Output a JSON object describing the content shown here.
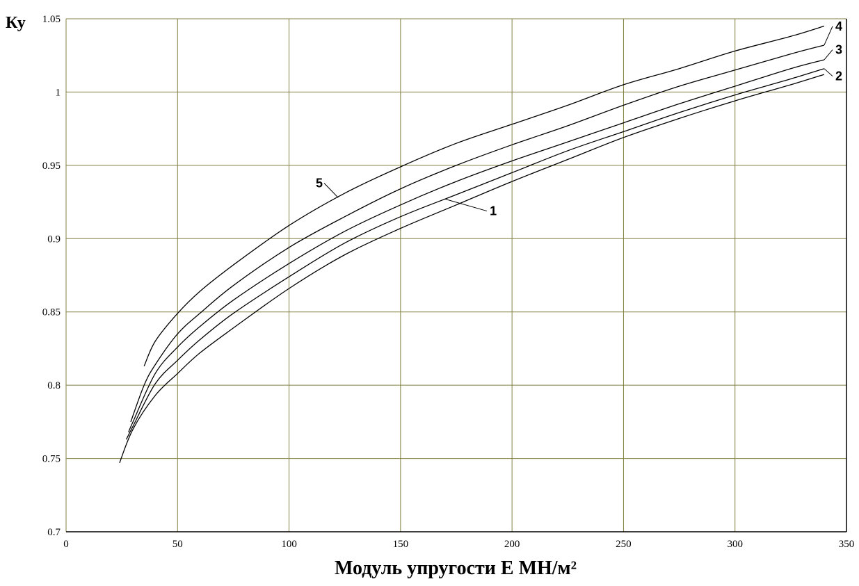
{
  "chart_data": {
    "type": "line",
    "xlabel": "Модуль упругости Е МН/м²",
    "ylabel": "Ку",
    "xlim": [
      0,
      350
    ],
    "ylim": [
      0.7,
      1.05
    ],
    "x_ticks": [
      0,
      50,
      100,
      150,
      200,
      250,
      300,
      350
    ],
    "y_ticks": [
      0.7,
      0.75,
      0.8,
      0.85,
      0.9,
      0.95,
      1,
      1.05
    ],
    "x_tick_labels": [
      "0",
      "50",
      "100",
      "150",
      "200",
      "250",
      "300",
      "350"
    ],
    "y_tick_labels": [
      "0.7",
      "0.75",
      "0.8",
      "0.85",
      "0.9",
      "0.95",
      "1",
      "1.05"
    ],
    "grid": true,
    "grid_color": "#808040",
    "line_color": "#000000",
    "series": [
      {
        "name": "1",
        "x": [
          24,
          30,
          40,
          50,
          60,
          75,
          100,
          125,
          150,
          175,
          200,
          225,
          250,
          275,
          300,
          325,
          340
        ],
        "y": [
          0.747,
          0.77,
          0.793,
          0.808,
          0.822,
          0.839,
          0.866,
          0.889,
          0.907,
          0.923,
          0.939,
          0.954,
          0.969,
          0.982,
          0.994,
          1.005,
          1.012
        ]
      },
      {
        "name": "2",
        "x": [
          27,
          30,
          40,
          50,
          60,
          75,
          100,
          125,
          150,
          175,
          200,
          225,
          250,
          275,
          300,
          325,
          340
        ],
        "y": [
          0.763,
          0.772,
          0.801,
          0.817,
          0.831,
          0.849,
          0.874,
          0.897,
          0.915,
          0.93,
          0.945,
          0.96,
          0.973,
          0.986,
          0.998,
          1.009,
          1.016
        ]
      },
      {
        "name": "3",
        "x": [
          28,
          30,
          40,
          50,
          60,
          75,
          100,
          125,
          150,
          175,
          200,
          225,
          250,
          275,
          300,
          325,
          340
        ],
        "y": [
          0.768,
          0.775,
          0.808,
          0.826,
          0.84,
          0.858,
          0.883,
          0.905,
          0.923,
          0.939,
          0.953,
          0.966,
          0.979,
          0.992,
          1.004,
          1.016,
          1.022
        ]
      },
      {
        "name": "4",
        "x": [
          29,
          35,
          40,
          50,
          60,
          75,
          100,
          125,
          150,
          175,
          200,
          225,
          250,
          275,
          300,
          325,
          340
        ],
        "y": [
          0.775,
          0.8,
          0.814,
          0.835,
          0.849,
          0.868,
          0.894,
          0.915,
          0.934,
          0.95,
          0.964,
          0.977,
          0.991,
          1.004,
          1.015,
          1.026,
          1.032
        ]
      },
      {
        "name": "5",
        "x": [
          35,
          40,
          50,
          60,
          75,
          100,
          125,
          150,
          175,
          200,
          225,
          250,
          275,
          300,
          325,
          340
        ],
        "y": [
          0.813,
          0.83,
          0.849,
          0.864,
          0.882,
          0.909,
          0.931,
          0.949,
          0.965,
          0.978,
          0.991,
          1.005,
          1.016,
          1.028,
          1.038,
          1.045
        ]
      }
    ],
    "annotations": [
      {
        "text": "1",
        "series": "1",
        "point_x": 170,
        "point_y": 0.927,
        "label_x": 190,
        "label_y": 0.916
      },
      {
        "text": "2",
        "series": "2",
        "point_x": 340,
        "point_y": 1.016,
        "label_x": 345,
        "label_y": 1.008
      },
      {
        "text": "3",
        "series": "3",
        "point_x": 340,
        "point_y": 1.022,
        "label_x": 345,
        "label_y": 1.026
      },
      {
        "text": "4",
        "series": "4",
        "point_x": 340,
        "point_y": 1.032,
        "label_x": 345,
        "label_y": 1.042
      },
      {
        "text": "5",
        "series": "5",
        "point_x": 122,
        "point_y": 0.928,
        "label_x": 112,
        "label_y": 0.935
      }
    ]
  }
}
